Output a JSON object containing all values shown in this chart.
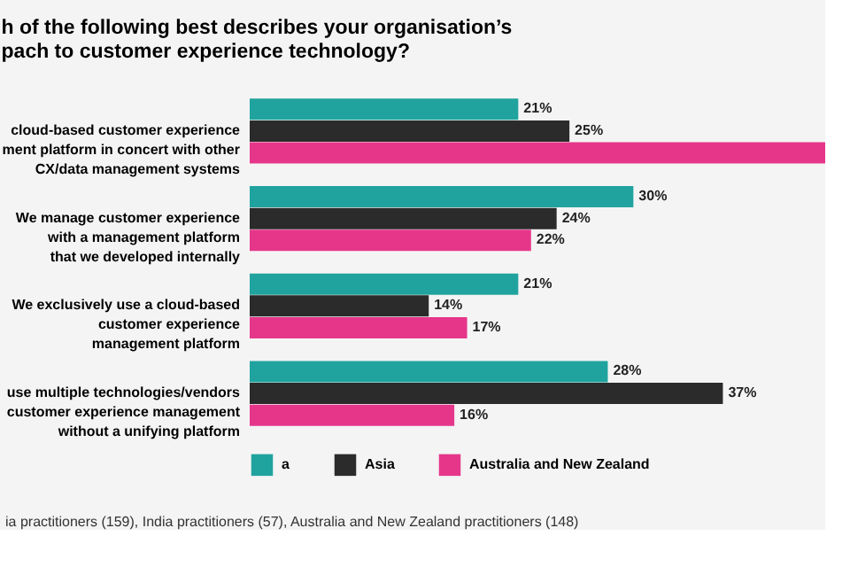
{
  "chart_data": {
    "type": "bar",
    "orientation": "horizontal",
    "title": [
      "h of the following best describes your organisation’s",
      "pach to customer experience technology?"
    ],
    "categories": [
      "cloud-based customer experience\nment platform in concert with other\nCX/data management systems",
      "We manage customer experience\nwith a management platform\nthat we developed internally",
      "We exclusively use a cloud-based\ncustomer experience\nmanagement platform",
      "use multiple technologies/vendors\ncustomer experience management\nwithout a unifying platform"
    ],
    "series": [
      {
        "name": "a",
        "color": "#20a39e",
        "values": [
          21,
          30,
          21,
          28
        ],
        "value_labels": [
          "21%",
          "30%",
          "21%",
          "28%"
        ]
      },
      {
        "name": "Asia",
        "color": "#2b2b2b",
        "values": [
          25,
          24,
          14,
          37
        ],
        "value_labels": [
          "25%",
          "24%",
          "14%",
          "37%"
        ]
      },
      {
        "name": "Australia and New Zealand",
        "color": "#e5368a",
        "values": [
          45,
          22,
          17,
          16
        ],
        "value_labels": [
          null,
          "22%",
          "17%",
          "16%"
        ]
      }
    ],
    "legend": "bottom left",
    "annotations": [
      "ia practitioners (159), India practitioners (57), Australia and New Zealand practitioners (148)"
    ]
  }
}
